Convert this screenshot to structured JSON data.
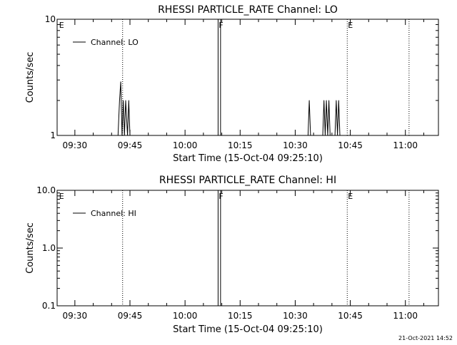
{
  "footer_timestamp": "21-Oct-2021 14:52",
  "chart_data": [
    {
      "type": "line",
      "title": "RHESSI PARTICLE_RATE Channel: LO",
      "xlabel": "Start Time (15-Oct-04 09:25:10)",
      "ylabel": "Counts/sec",
      "yscale": "log",
      "ylim": [
        1,
        10
      ],
      "yticks": [
        1,
        10
      ],
      "ytick_labels": [
        "1",
        "10"
      ],
      "xlim": [
        "09:25:10",
        "11:09:00"
      ],
      "xticks": [
        "09:30",
        "09:45",
        "10:00",
        "10:15",
        "10:30",
        "10:45",
        "11:00"
      ],
      "legend": {
        "label": "Channel: LO",
        "position": "top-left"
      },
      "markers": [
        {
          "label": "E",
          "time": "09:25:30",
          "style": "none"
        },
        {
          "label": "",
          "time": "09:43:00",
          "style": "dotted"
        },
        {
          "label": "F",
          "time": "10:09:00",
          "style": "solid"
        },
        {
          "label": "",
          "time": "10:09:40",
          "style": "solid"
        },
        {
          "label": "E",
          "time": "10:44:10",
          "style": "dotted"
        },
        {
          "label": "",
          "time": "11:01:00",
          "style": "dotted"
        }
      ],
      "series": [
        {
          "name": "Channel: LO",
          "x": [
            "09:41:45",
            "09:42:10",
            "09:42:30",
            "09:42:50",
            "09:43:10",
            "09:43:30",
            "09:43:50",
            "09:44:20",
            "09:44:40",
            "09:45:00",
            "10:33:30",
            "10:33:50",
            "10:34:10",
            "10:37:30",
            "10:37:50",
            "10:38:10",
            "10:38:30",
            "10:38:50",
            "10:39:10",
            "10:39:30",
            "10:40:50",
            "10:41:10",
            "10:41:30",
            "10:41:50",
            "10:42:10"
          ],
          "y": [
            1,
            2,
            2.9,
            1,
            2,
            1,
            2,
            1,
            2,
            1,
            1,
            2,
            1,
            1,
            2,
            1,
            2,
            1,
            2,
            1,
            1,
            2,
            1,
            2,
            1
          ]
        }
      ]
    },
    {
      "type": "line",
      "title": "RHESSI PARTICLE_RATE Channel: HI",
      "xlabel": "Start Time (15-Oct-04 09:25:10)",
      "ylabel": "Counts/sec",
      "yscale": "log",
      "ylim": [
        0.1,
        10
      ],
      "yticks": [
        0.1,
        1,
        10
      ],
      "ytick_labels": [
        "0.1",
        "1.0",
        "10.0"
      ],
      "xlim": [
        "09:25:10",
        "11:09:00"
      ],
      "xticks": [
        "09:30",
        "09:45",
        "10:00",
        "10:15",
        "10:30",
        "10:45",
        "11:00"
      ],
      "legend": {
        "label": "Channel: HI",
        "position": "top-left"
      },
      "markers": [
        {
          "label": "E",
          "time": "09:25:30",
          "style": "none"
        },
        {
          "label": "",
          "time": "09:43:00",
          "style": "dotted"
        },
        {
          "label": "F",
          "time": "10:09:00",
          "style": "solid"
        },
        {
          "label": "",
          "time": "10:09:40",
          "style": "solid"
        },
        {
          "label": "E",
          "time": "10:44:10",
          "style": "dotted"
        },
        {
          "label": "",
          "time": "11:01:00",
          "style": "dotted"
        }
      ],
      "series": [
        {
          "name": "Channel: HI",
          "x": [],
          "y": []
        }
      ]
    }
  ]
}
